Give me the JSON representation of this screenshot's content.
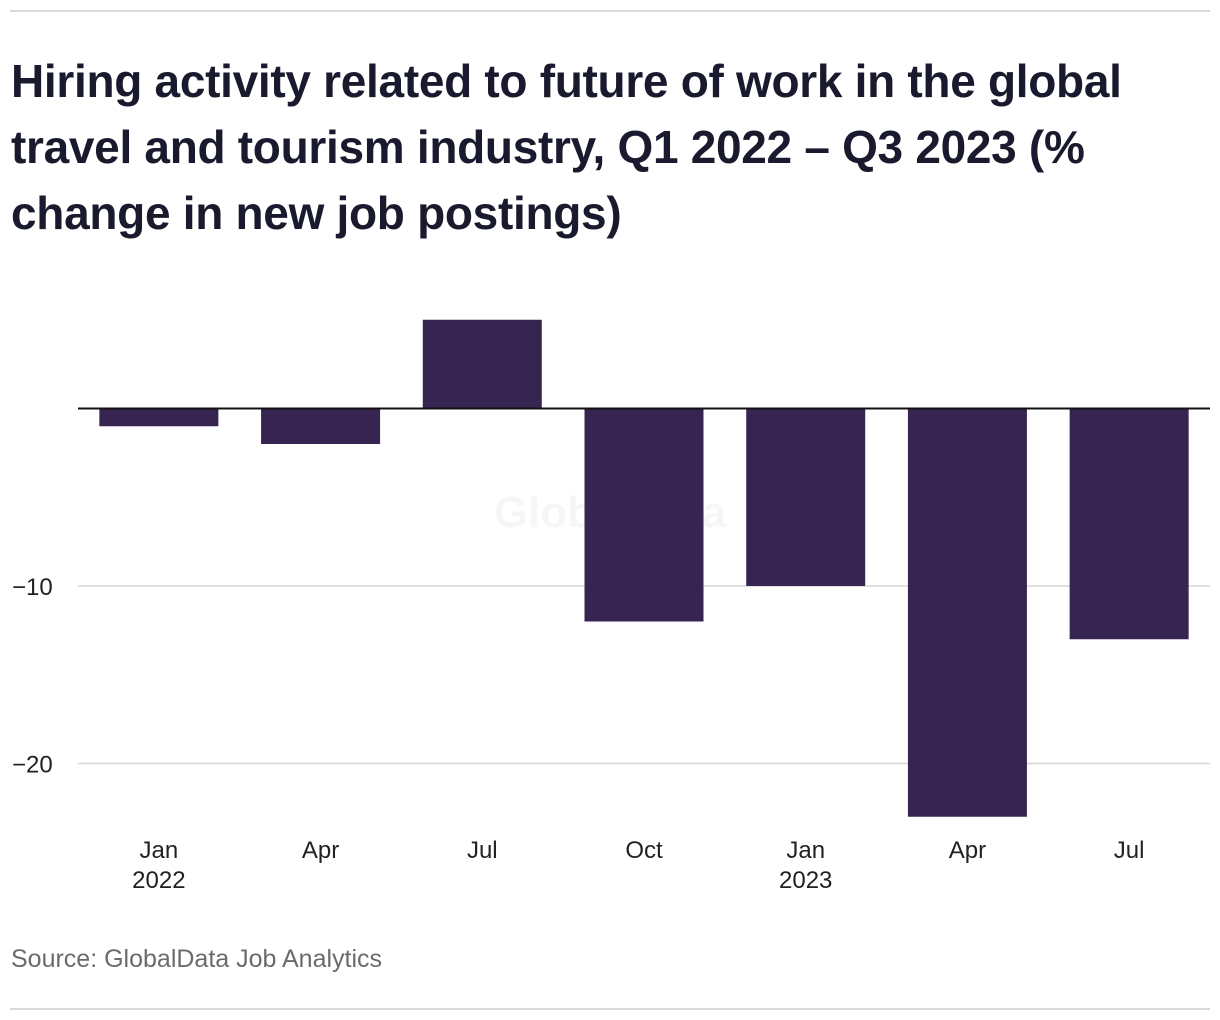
{
  "chart_data": {
    "type": "bar",
    "title": "Hiring activity related to future of work in the global travel and tourism industry, Q1 2022 – Q3 2023 (% change in new job postings)",
    "categories": [
      "Jan 2022",
      "Apr",
      "Jul",
      "Oct",
      "Jan 2023",
      "Apr",
      "Jul"
    ],
    "tick_labels": [
      {
        "month": "Jan",
        "year": "2022"
      },
      {
        "month": "Apr",
        "year": ""
      },
      {
        "month": "Jul",
        "year": ""
      },
      {
        "month": "Oct",
        "year": ""
      },
      {
        "month": "Jan",
        "year": "2023"
      },
      {
        "month": "Apr",
        "year": ""
      },
      {
        "month": "Jul",
        "year": ""
      }
    ],
    "values": [
      -1,
      -2,
      5,
      -12,
      -10,
      -23,
      -13
    ],
    "y_ticks": [
      {
        "value": -10,
        "label": "−10"
      },
      {
        "value": -20,
        "label": "−20"
      }
    ],
    "ylim": [
      -25,
      9
    ],
    "xlabel": "",
    "ylabel": "",
    "grid": true,
    "bar_color": "#352550",
    "watermark": "GlobalData",
    "source": "Source: GlobalData Job Analytics"
  }
}
